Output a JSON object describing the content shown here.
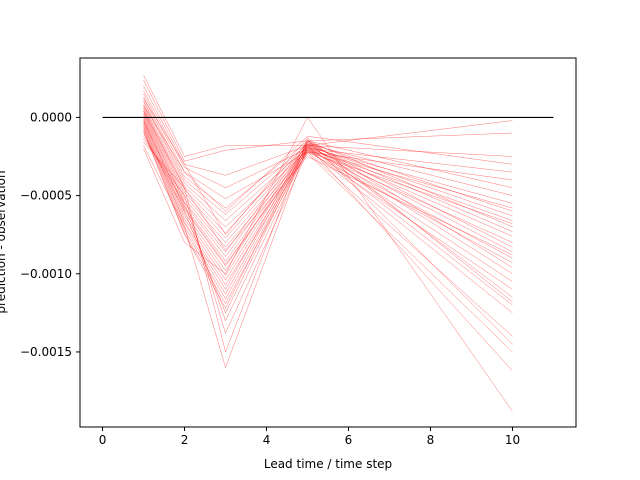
{
  "chart_data": {
    "type": "line",
    "title": "",
    "xlabel": "Lead time / time step",
    "ylabel": "prediction - observation",
    "xlim": [
      -0.55,
      11.55
    ],
    "ylim": [
      -0.00198,
      0.00038
    ],
    "x_ticks": [
      0,
      2,
      4,
      6,
      8,
      10
    ],
    "x_tick_labels": [
      "0",
      "2",
      "4",
      "6",
      "8",
      "10"
    ],
    "y_ticks": [
      0.0,
      -0.0005,
      -0.001,
      -0.0015
    ],
    "y_tick_labels": [
      "0.0000",
      "−0.0005",
      "−0.0010",
      "−0.0015"
    ],
    "grid": false,
    "legend": "none",
    "zero_line": {
      "x": [
        0,
        11
      ],
      "y": [
        0,
        0
      ],
      "color": "#000000"
    },
    "series_color": "#ff0000",
    "x": [
      1,
      2,
      3,
      5,
      10
    ],
    "series": [
      {
        "values": [
          0.00027,
          -0.00025,
          -0.00018,
          -0.00018,
          -2e-05
        ]
      },
      {
        "values": [
          0.00024,
          -0.00028,
          -0.00021,
          -0.00015,
          -0.0001
        ]
      },
      {
        "values": [
          0.0002,
          -0.0003,
          -0.00037,
          -0.00018,
          -0.00025
        ]
      },
      {
        "values": [
          0.00017,
          -0.00032,
          -0.00045,
          -0.0002,
          -0.00035
        ]
      },
      {
        "values": [
          0.00015,
          -0.00035,
          -0.00052,
          -0.00022,
          -0.0004
        ]
      },
      {
        "values": [
          0.00013,
          -0.00038,
          -0.00058,
          -0.00015,
          -0.00045
        ]
      },
      {
        "values": [
          0.00011,
          -0.0004,
          -0.00062,
          -0.00017,
          -0.0005
        ]
      },
      {
        "values": [
          0.0001,
          -0.00042,
          -0.00066,
          -0.00019,
          -0.00055
        ]
      },
      {
        "values": [
          8e-05,
          -0.00044,
          -0.0007,
          -0.00021,
          -0.00058
        ]
      },
      {
        "values": [
          7e-05,
          -0.00046,
          -0.00074,
          -0.00016,
          -0.0006
        ]
      },
      {
        "values": [
          6e-05,
          -0.00048,
          -0.00077,
          -0.00018,
          -0.00063
        ]
      },
      {
        "values": [
          5e-05,
          -0.0005,
          -0.0008,
          -0.0002,
          -0.00066
        ]
      },
      {
        "values": [
          4e-05,
          -0.00052,
          -0.00083,
          -0.00022,
          -0.00068
        ]
      },
      {
        "values": [
          3e-05,
          -0.00054,
          -0.00086,
          -0.00015,
          -0.0007
        ]
      },
      {
        "values": [
          2e-05,
          -0.00055,
          -0.00089,
          -0.00017,
          -0.00073
        ]
      },
      {
        "values": [
          1e-05,
          -0.00057,
          -0.00092,
          -0.00019,
          -0.00076
        ]
      },
      {
        "values": [
          0.0,
          -0.00059,
          -0.00095,
          -0.00021,
          -0.0008
        ]
      },
      {
        "values": [
          -1e-05,
          -0.00061,
          -0.00098,
          -0.00016,
          -0.00083
        ]
      },
      {
        "values": [
          -2e-05,
          -0.00063,
          -0.00101,
          -0.00018,
          -0.00086
        ]
      },
      {
        "values": [
          -3e-05,
          -0.00065,
          -0.00104,
          -0.0002,
          -0.0009
        ]
      },
      {
        "values": [
          -4e-05,
          -0.00067,
          -0.00107,
          -0.00022,
          -0.00093
        ]
      },
      {
        "values": [
          -5e-05,
          -0.00068,
          -0.0011,
          -0.00015,
          -0.00096
        ]
      },
      {
        "values": [
          -6e-05,
          -0.0007,
          -0.00113,
          -0.00017,
          -0.001
        ]
      },
      {
        "values": [
          -7e-05,
          -0.00072,
          -0.00116,
          -0.00019,
          -0.00105
        ]
      },
      {
        "values": [
          -8e-05,
          -0.00074,
          -0.00119,
          -0.00021,
          -0.0011
        ]
      },
      {
        "values": [
          -9e-05,
          -0.00075,
          -0.00122,
          -0.00016,
          -0.00115
        ]
      },
      {
        "values": [
          -0.0001,
          -0.0006,
          -0.00125,
          -0.00018,
          -0.0012
        ]
      },
      {
        "values": [
          -0.00012,
          -0.00055,
          -0.0013,
          -0.0002,
          -0.00125
        ]
      },
      {
        "values": [
          -0.00014,
          -0.0005,
          -0.00138,
          -0.00022,
          -0.0014
        ]
      },
      {
        "values": [
          -0.00016,
          -0.00045,
          -0.0015,
          -0.00014,
          -0.00145
        ]
      },
      {
        "values": [
          -0.00018,
          -0.0007,
          -0.0016,
          -0.00018,
          -0.00162
        ]
      },
      {
        "values": [
          -0.0002,
          -0.0008,
          -0.001,
          0.0,
          -0.00188
        ]
      },
      {
        "values": [
          8e-05,
          -0.00035,
          -0.0006,
          -0.00012,
          -0.0003
        ]
      },
      {
        "values": [
          4e-05,
          -0.00045,
          -0.00085,
          -0.00025,
          -0.00088
        ]
      },
      {
        "values": [
          0.00012,
          -0.0003,
          -0.00075,
          -0.00013,
          -0.00118
        ]
      },
      {
        "values": [
          -2e-05,
          -0.00058,
          -0.00094,
          -0.00023,
          -0.0015
        ]
      }
    ]
  }
}
